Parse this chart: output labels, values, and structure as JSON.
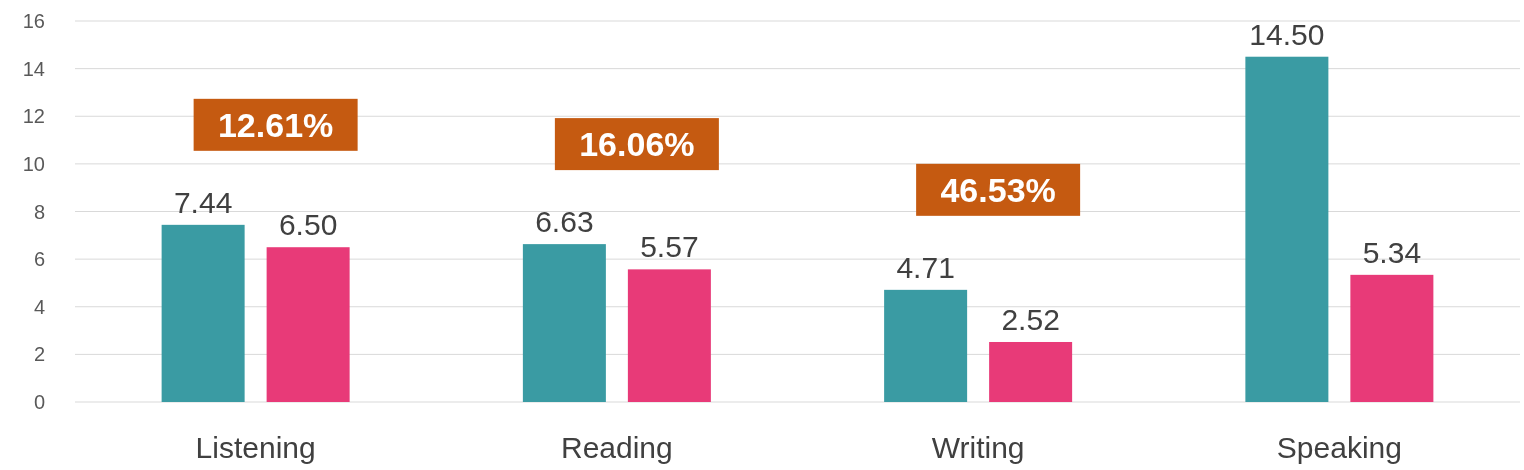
{
  "chart_data": {
    "type": "bar",
    "categories": [
      "Listening",
      "Reading",
      "Writing",
      "Speaking"
    ],
    "series": [
      {
        "color": "#3a9ba3",
        "values": [
          7.44,
          6.63,
          4.71,
          14.5
        ]
      },
      {
        "color": "#e83a78",
        "values": [
          6.5,
          5.57,
          2.52,
          5.34
        ]
      }
    ],
    "value_labels": [
      [
        "7.44",
        "6.63",
        "4.71",
        "14.50"
      ],
      [
        "6.50",
        "5.57",
        "2.52",
        "5.34"
      ]
    ],
    "ylim": [
      0,
      16
    ],
    "yticks": [
      0,
      2,
      4,
      6,
      8,
      10,
      12,
      14,
      16
    ],
    "grid": "y",
    "annotations": [
      "12.61%",
      "16.06%",
      "46.53%"
    ]
  }
}
